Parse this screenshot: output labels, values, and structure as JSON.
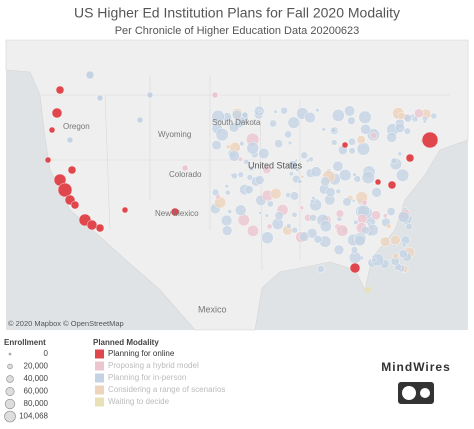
{
  "header": {
    "title": "US Higher Ed Institution Plans for Fall 2020 Modality",
    "subtitle": "Per Chronicle of Higher Education Data 20200623"
  },
  "map": {
    "labels": [
      "Oregon",
      "Wyoming",
      "South Dakota",
      "Colorado",
      "New Mexico",
      "United States",
      "Mexico"
    ],
    "attribution": "© 2020 Mapbox © OpenStreetMap"
  },
  "legend": {
    "size_title": "Enrollment",
    "sizes": [
      0,
      {
        "value": 20000,
        "label": "20,000"
      },
      {
        "value": 40000,
        "label": "40,000"
      },
      {
        "value": 60000,
        "label": "60,000"
      },
      {
        "value": 80000,
        "label": "80,000"
      },
      {
        "value": 104068,
        "label": "104,068"
      }
    ],
    "color_title": "Planned Modality",
    "categories": [
      {
        "name": "Planning for online",
        "color": "#e0474c"
      },
      {
        "name": "Proposing a hybrid model",
        "color": "#ecc6cf"
      },
      {
        "name": "Planning for in-person",
        "color": "#c4d3e3"
      },
      {
        "name": "Considering a range of scenarios",
        "color": "#eed3bd"
      },
      {
        "name": "Waiting to decide",
        "color": "#e9e1b6"
      }
    ]
  },
  "logo": {
    "text": "MindWires"
  }
}
